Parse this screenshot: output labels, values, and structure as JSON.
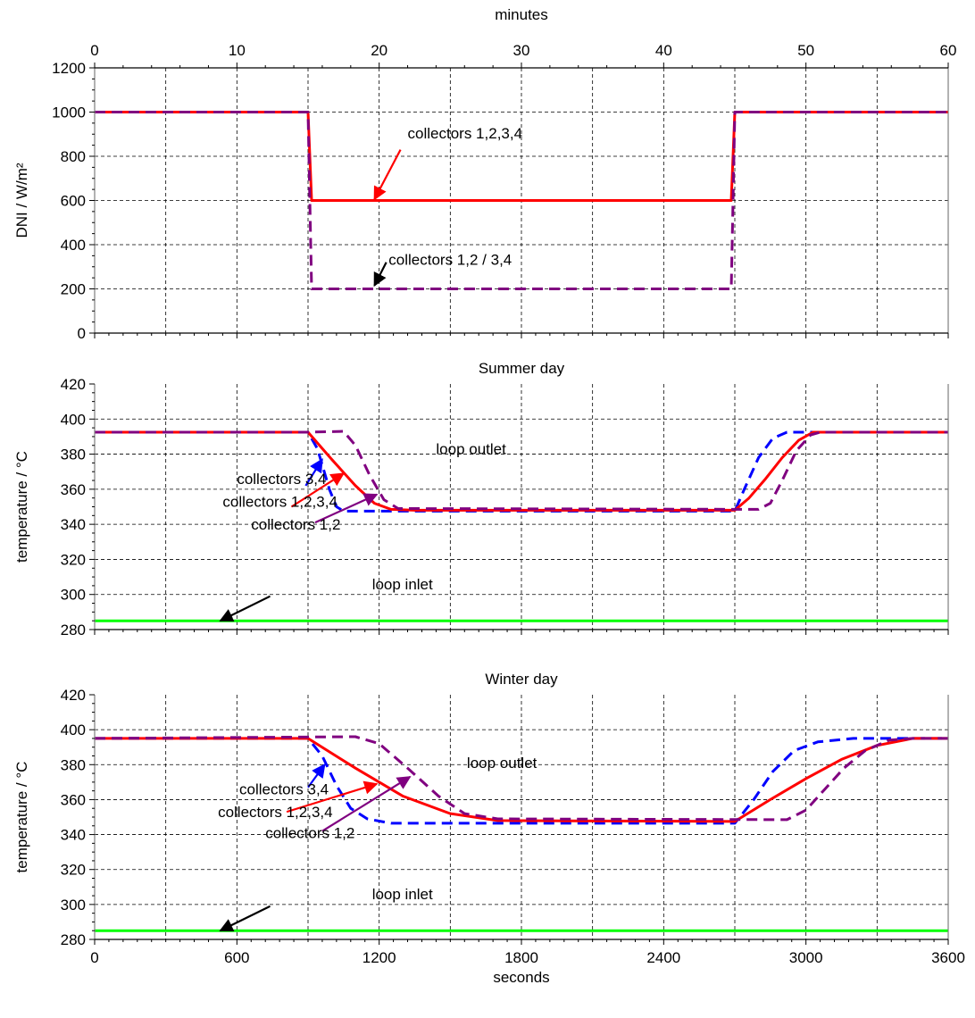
{
  "chart_data": [
    {
      "type": "line",
      "panel": "dni",
      "title": "",
      "top_xlabel": "minutes",
      "top_xticks": [
        0,
        10,
        20,
        30,
        40,
        50,
        60
      ],
      "xlim": [
        0,
        3600
      ],
      "ylabel": "DNI / W/m²",
      "ylim": [
        0,
        1200
      ],
      "yticks": [
        0,
        200,
        400,
        600,
        800,
        1000,
        1200
      ],
      "grid": true,
      "series": [
        {
          "id": "dni_1234",
          "color": "#ff0000",
          "dash": "solid",
          "points": [
            [
              0,
              1000
            ],
            [
              900,
              1000
            ],
            [
              915,
              600
            ],
            [
              2685,
              600
            ],
            [
              2700,
              1000
            ],
            [
              3600,
              1000
            ]
          ]
        },
        {
          "id": "dni_12_34",
          "color": "#800080",
          "dash": "dashed",
          "points": [
            [
              0,
              1000
            ],
            [
              900,
              1000
            ],
            [
              915,
              200
            ],
            [
              2685,
              200
            ],
            [
              2700,
              1000
            ],
            [
              3600,
              1000
            ]
          ]
        }
      ],
      "annotations": [
        {
          "text": "collectors 1,2,3,4",
          "text_at": [
            1320,
            880
          ],
          "arrow_from": [
            1290,
            830
          ],
          "arrow_to": [
            1180,
            605
          ],
          "color": "#ff0000"
        },
        {
          "text": "collectors 1,2 / 3,4",
          "text_at": [
            1240,
            310
          ],
          "arrow_from": [
            1230,
            320
          ],
          "arrow_to": [
            1180,
            215
          ],
          "color": "#000000"
        }
      ]
    },
    {
      "type": "line",
      "panel": "summer",
      "title": "Summer day",
      "xlim": [
        0,
        3600
      ],
      "ylabel": "temperature / °C",
      "ylim": [
        280,
        420
      ],
      "yticks": [
        280,
        300,
        320,
        340,
        360,
        380,
        400,
        420
      ],
      "grid": true,
      "series": [
        {
          "id": "s_inlet",
          "color": "#00ff00",
          "dash": "solid",
          "points": [
            [
              0,
              285
            ],
            [
              3600,
              285
            ]
          ]
        },
        {
          "id": "s_34",
          "color": "#0000ff",
          "dash": "dashed",
          "points": [
            [
              0,
              392.5
            ],
            [
              900,
              392.5
            ],
            [
              940,
              383
            ],
            [
              990,
              360
            ],
            [
              1020,
              350
            ],
            [
              1050,
              347.5
            ],
            [
              2700,
              347.5
            ],
            [
              2740,
              360
            ],
            [
              2800,
              378
            ],
            [
              2860,
              389
            ],
            [
              2920,
              392.5
            ],
            [
              3600,
              392.5
            ]
          ]
        },
        {
          "id": "s_1234",
          "color": "#ff0000",
          "dash": "solid",
          "points": [
            [
              0,
              392.5
            ],
            [
              900,
              392.5
            ],
            [
              1000,
              377
            ],
            [
              1100,
              362
            ],
            [
              1180,
              352
            ],
            [
              1250,
              348.5
            ],
            [
              1350,
              348
            ],
            [
              2700,
              348
            ],
            [
              2760,
              355
            ],
            [
              2830,
              366
            ],
            [
              2900,
              378
            ],
            [
              2970,
              388
            ],
            [
              3030,
              392.5
            ],
            [
              3600,
              392.5
            ]
          ]
        },
        {
          "id": "s_12",
          "color": "#800080",
          "dash": "dashed",
          "points": [
            [
              0,
              392.5
            ],
            [
              900,
              392.5
            ],
            [
              1050,
              393
            ],
            [
              1100,
              385
            ],
            [
              1160,
              368
            ],
            [
              1220,
              354
            ],
            [
              1280,
              349
            ],
            [
              2800,
              348.5
            ],
            [
              2850,
              352
            ],
            [
              2900,
              365
            ],
            [
              2960,
              382
            ],
            [
              3020,
              391
            ],
            [
              3060,
              392.5
            ],
            [
              3600,
              392.5
            ]
          ]
        }
      ],
      "annotations": [
        {
          "text": "loop outlet",
          "text_at": [
            1440,
            380
          ]
        },
        {
          "text": "collectors 3,4",
          "text_at": [
            600,
            363
          ],
          "arrow_from": [
            890,
            362
          ],
          "arrow_to": [
            960,
            377
          ],
          "color": "#0000ff"
        },
        {
          "text": "collectors 1,2,3,4",
          "text_at": [
            540,
            350
          ],
          "arrow_from": [
            830,
            350
          ],
          "arrow_to": [
            1050,
            369
          ],
          "color": "#ff0000"
        },
        {
          "text": "collectors 1,2",
          "text_at": [
            660,
            337
          ],
          "arrow_from": [
            930,
            341
          ],
          "arrow_to": [
            1190,
            357
          ],
          "color": "#800080"
        },
        {
          "text": "loop inlet",
          "text_at": [
            1170,
            303
          ],
          "arrow_from": [
            740,
            299
          ],
          "arrow_to": [
            530,
            285
          ],
          "color": "#000000"
        }
      ]
    },
    {
      "type": "line",
      "panel": "winter",
      "title": "Winter day",
      "xlim": [
        0,
        3600
      ],
      "xlabel": "seconds",
      "xticks": [
        0,
        600,
        1200,
        1800,
        2400,
        3000,
        3600
      ],
      "ylabel": "temperature / °C",
      "ylim": [
        280,
        420
      ],
      "yticks": [
        280,
        300,
        320,
        340,
        360,
        380,
        400,
        420
      ],
      "grid": true,
      "series": [
        {
          "id": "w_inlet",
          "color": "#00ff00",
          "dash": "solid",
          "points": [
            [
              0,
              285
            ],
            [
              3600,
              285
            ]
          ]
        },
        {
          "id": "w_34",
          "color": "#0000ff",
          "dash": "dashed",
          "points": [
            [
              0,
              395
            ],
            [
              900,
              395
            ],
            [
              960,
              385
            ],
            [
              1020,
              368
            ],
            [
              1080,
              355
            ],
            [
              1150,
              349
            ],
            [
              1250,
              346.5
            ],
            [
              2700,
              346.5
            ],
            [
              2780,
              360
            ],
            [
              2860,
              376
            ],
            [
              2950,
              388
            ],
            [
              3050,
              393
            ],
            [
              3200,
              395
            ],
            [
              3600,
              395
            ]
          ]
        },
        {
          "id": "w_1234",
          "color": "#ff0000",
          "dash": "solid",
          "points": [
            [
              0,
              395
            ],
            [
              900,
              395
            ],
            [
              1100,
              378
            ],
            [
              1300,
              362
            ],
            [
              1500,
              352
            ],
            [
              1700,
              348
            ],
            [
              2700,
              347.5
            ],
            [
              2850,
              360
            ],
            [
              3000,
              372
            ],
            [
              3150,
              383
            ],
            [
              3300,
              391
            ],
            [
              3450,
              395
            ],
            [
              3600,
              395
            ]
          ]
        },
        {
          "id": "w_12",
          "color": "#800080",
          "dash": "dashed",
          "points": [
            [
              0,
              395
            ],
            [
              1100,
              396
            ],
            [
              1200,
              392
            ],
            [
              1320,
              378
            ],
            [
              1450,
              362
            ],
            [
              1560,
              352
            ],
            [
              1700,
              349
            ],
            [
              2920,
              348.5
            ],
            [
              3000,
              354
            ],
            [
              3080,
              366
            ],
            [
              3160,
              378
            ],
            [
              3250,
              388
            ],
            [
              3350,
              394
            ],
            [
              3450,
              395
            ],
            [
              3600,
              395
            ]
          ]
        }
      ],
      "annotations": [
        {
          "text": "loop outlet",
          "text_at": [
            1570,
            378
          ]
        },
        {
          "text": "collectors 3,4",
          "text_at": [
            610,
            363
          ],
          "arrow_from": [
            900,
            367
          ],
          "arrow_to": [
            970,
            380
          ],
          "color": "#0000ff"
        },
        {
          "text": "collectors 1,2,3,4",
          "text_at": [
            520,
            350
          ],
          "arrow_from": [
            810,
            353
          ],
          "arrow_to": [
            1190,
            369
          ],
          "color": "#ff0000"
        },
        {
          "text": "collectors 1,2",
          "text_at": [
            720,
            338
          ],
          "arrow_from": [
            960,
            342
          ],
          "arrow_to": [
            1330,
            373
          ],
          "color": "#800080"
        },
        {
          "text": "loop inlet",
          "text_at": [
            1170,
            303
          ],
          "arrow_from": [
            740,
            299
          ],
          "arrow_to": [
            530,
            285
          ],
          "color": "#000000"
        }
      ]
    }
  ]
}
